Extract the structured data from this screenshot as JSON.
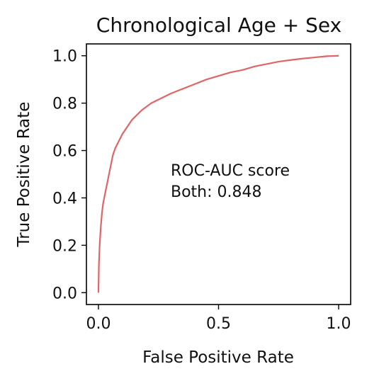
{
  "chart_data": {
    "type": "line",
    "title": "Chronological Age + Sex",
    "xlabel": "False Positive Rate",
    "ylabel": "True Positive Rate",
    "xlim": [
      -0.05,
      1.05
    ],
    "ylim": [
      -0.05,
      1.05
    ],
    "xticks": [
      0.0,
      0.5,
      1.0
    ],
    "xtick_labels": [
      "0.0",
      "0.5",
      "1.0"
    ],
    "yticks": [
      0.0,
      0.2,
      0.4,
      0.6,
      0.8,
      1.0
    ],
    "ytick_labels": [
      "0.0",
      "0.2",
      "0.4",
      "0.6",
      "0.8",
      "1.0"
    ],
    "grid": false,
    "annotations": [
      "ROC-AUC score",
      "Both: 0.848"
    ],
    "series": [
      {
        "color": "#e06666",
        "x": [
          0.0,
          0.002,
          0.005,
          0.01,
          0.015,
          0.02,
          0.03,
          0.04,
          0.05,
          0.06,
          0.07,
          0.08,
          0.1,
          0.12,
          0.14,
          0.16,
          0.18,
          0.2,
          0.22,
          0.25,
          0.28,
          0.3,
          0.35,
          0.4,
          0.45,
          0.5,
          0.55,
          0.6,
          0.65,
          0.7,
          0.75,
          0.8,
          0.85,
          0.9,
          0.95,
          1.0
        ],
        "y": [
          0.0,
          0.12,
          0.2,
          0.28,
          0.34,
          0.38,
          0.43,
          0.48,
          0.53,
          0.58,
          0.61,
          0.63,
          0.67,
          0.7,
          0.73,
          0.75,
          0.77,
          0.785,
          0.8,
          0.815,
          0.83,
          0.84,
          0.86,
          0.88,
          0.9,
          0.915,
          0.93,
          0.94,
          0.955,
          0.965,
          0.975,
          0.982,
          0.988,
          0.993,
          0.998,
          1.0
        ]
      }
    ]
  }
}
